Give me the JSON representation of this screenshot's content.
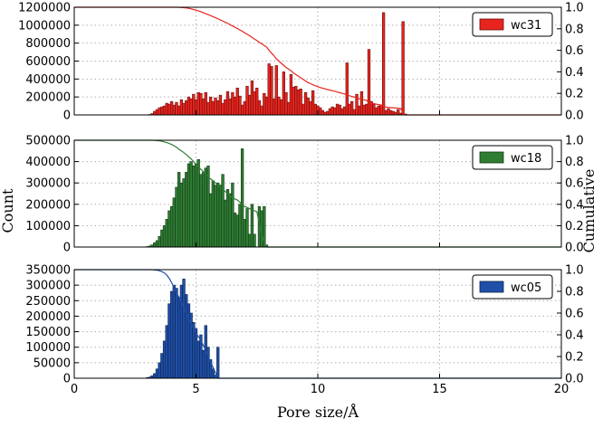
{
  "chart_data": [
    {
      "type": "bar",
      "legend_placement": "top-right",
      "grid": true,
      "x": [
        3.1,
        3.2,
        3.3,
        3.4,
        3.5,
        3.6,
        3.7,
        3.8,
        3.9,
        4.0,
        4.1,
        4.2,
        4.3,
        4.4,
        4.5,
        4.6,
        4.7,
        4.8,
        4.9,
        5.0,
        5.1,
        5.2,
        5.3,
        5.4,
        5.5,
        5.6,
        5.7,
        5.8,
        5.9,
        6.0,
        6.1,
        6.2,
        6.3,
        6.4,
        6.5,
        6.6,
        6.7,
        6.8,
        6.9,
        7.0,
        7.1,
        7.2,
        7.3,
        7.4,
        7.5,
        7.6,
        7.7,
        7.8,
        7.9,
        8.0,
        8.1,
        8.2,
        8.3,
        8.4,
        8.5,
        8.6,
        8.7,
        8.8,
        8.9,
        9.0,
        9.1,
        9.2,
        9.3,
        9.4,
        9.5,
        9.6,
        9.7,
        9.8,
        9.9,
        10.0,
        10.1,
        10.2,
        10.3,
        10.4,
        10.5,
        10.6,
        10.7,
        10.8,
        10.9,
        11.0,
        11.1,
        11.2,
        11.3,
        11.4,
        11.5,
        11.6,
        11.7,
        11.8,
        11.9,
        12.0,
        12.1,
        12.2,
        12.3,
        12.4,
        12.5,
        12.6,
        12.7,
        12.8,
        12.9,
        13.0,
        13.1,
        13.2,
        13.3,
        13.4,
        13.5,
        13.6,
        13.7
      ],
      "series": [
        {
          "name": "wc31",
          "color": "#e8241e",
          "values": [
            5000,
            15000,
            40000,
            60000,
            80000,
            90000,
            100000,
            130000,
            120000,
            150000,
            110000,
            140000,
            100000,
            170000,
            130000,
            160000,
            200000,
            180000,
            230000,
            170000,
            250000,
            240000,
            180000,
            250000,
            140000,
            200000,
            150000,
            190000,
            160000,
            220000,
            130000,
            170000,
            260000,
            180000,
            250000,
            200000,
            300000,
            210000,
            110000,
            150000,
            320000,
            220000,
            380000,
            260000,
            300000,
            160000,
            100000,
            240000,
            200000,
            570000,
            540000,
            180000,
            550000,
            200000,
            170000,
            480000,
            250000,
            140000,
            450000,
            310000,
            320000,
            280000,
            290000,
            120000,
            250000,
            190000,
            150000,
            270000,
            120000,
            100000,
            80000,
            50000,
            30000,
            40000,
            70000,
            90000,
            80000,
            120000,
            110000,
            70000,
            90000,
            580000,
            120000,
            150000,
            60000,
            230000,
            100000,
            260000,
            110000,
            120000,
            730000,
            150000,
            120000,
            80000,
            100000,
            110000,
            1140000,
            50000,
            70000,
            50000,
            40000,
            30000,
            60000,
            20000,
            1040000,
            10000,
            0
          ],
          "cumulative": [
            1.0,
            1.0,
            1.0,
            1.0,
            1.0,
            1.0,
            1.0,
            1.0,
            1.0,
            1.0,
            1.0,
            1.0,
            0.999,
            0.998,
            0.996,
            0.993,
            0.99,
            0.985,
            0.979,
            0.973,
            0.966,
            0.958,
            0.949,
            0.94,
            0.931,
            0.922,
            0.912,
            0.903,
            0.893,
            0.882,
            0.872,
            0.861,
            0.85,
            0.838,
            0.826,
            0.814,
            0.802,
            0.789,
            0.776,
            0.762,
            0.749,
            0.735,
            0.72,
            0.705,
            0.69,
            0.674,
            0.66,
            0.645,
            0.63,
            0.6,
            0.573,
            0.55,
            0.52,
            0.5,
            0.48,
            0.46,
            0.44,
            0.425,
            0.41,
            0.39,
            0.375,
            0.36,
            0.345,
            0.33,
            0.315,
            0.3,
            0.29,
            0.28,
            0.27,
            0.262,
            0.255,
            0.248,
            0.242,
            0.236,
            0.23,
            0.225,
            0.22,
            0.213,
            0.207,
            0.2,
            0.195,
            0.185,
            0.178,
            0.172,
            0.166,
            0.158,
            0.15,
            0.145,
            0.14,
            0.135,
            0.115,
            0.11,
            0.105,
            0.1,
            0.096,
            0.092,
            0.075,
            0.073,
            0.07,
            0.068,
            0.066,
            0.064,
            0.062,
            0.06,
            0.02,
            0.0,
            0.0
          ]
        }
      ],
      "xlim": [
        0,
        20
      ],
      "ylim": [
        0,
        1200000
      ],
      "y2lim": [
        0,
        1.0
      ],
      "y_ticks": [
        "0",
        "200000",
        "400000",
        "600000",
        "800000",
        "1000000",
        "1200000"
      ],
      "y2_ticks": [
        "0.0",
        "0.2",
        "0.4",
        "0.6",
        "0.8",
        "1.0"
      ]
    },
    {
      "type": "bar",
      "legend_placement": "top-right",
      "grid": true,
      "x": [
        3.0,
        3.1,
        3.2,
        3.3,
        3.4,
        3.5,
        3.6,
        3.7,
        3.8,
        3.9,
        4.0,
        4.1,
        4.2,
        4.3,
        4.4,
        4.5,
        4.6,
        4.7,
        4.8,
        4.9,
        5.0,
        5.1,
        5.2,
        5.3,
        5.4,
        5.5,
        5.6,
        5.7,
        5.8,
        5.9,
        6.0,
        6.1,
        6.2,
        6.3,
        6.4,
        6.5,
        6.6,
        6.7,
        6.8,
        6.9,
        7.0,
        7.1,
        7.2,
        7.3,
        7.4,
        7.5,
        7.6,
        7.7,
        7.8,
        7.9
      ],
      "series": [
        {
          "name": "wc18",
          "color": "#2e7d32",
          "values": [
            2000,
            5000,
            10000,
            20000,
            30000,
            50000,
            80000,
            100000,
            130000,
            170000,
            190000,
            230000,
            280000,
            350000,
            300000,
            320000,
            350000,
            390000,
            400000,
            380000,
            390000,
            410000,
            340000,
            350000,
            370000,
            380000,
            250000,
            310000,
            290000,
            300000,
            290000,
            340000,
            220000,
            270000,
            250000,
            300000,
            160000,
            150000,
            200000,
            460000,
            130000,
            180000,
            60000,
            200000,
            60000,
            0,
            190000,
            170000,
            190000,
            10000
          ],
          "cumulative": [
            1.0,
            1.0,
            1.0,
            0.999,
            0.997,
            0.995,
            0.99,
            0.985,
            0.978,
            0.97,
            0.96,
            0.948,
            0.934,
            0.915,
            0.9,
            0.884,
            0.865,
            0.845,
            0.825,
            0.8,
            0.775,
            0.75,
            0.728,
            0.705,
            0.68,
            0.655,
            0.638,
            0.62,
            0.6,
            0.58,
            0.56,
            0.54,
            0.52,
            0.5,
            0.48,
            0.46,
            0.45,
            0.44,
            0.42,
            0.39,
            0.38,
            0.37,
            0.36,
            0.35,
            0.34,
            0.33,
            0.22,
            0.12,
            0.03,
            0.0
          ]
        }
      ],
      "xlim": [
        0,
        20
      ],
      "ylim": [
        0,
        500000
      ],
      "y2lim": [
        0,
        1.0
      ],
      "y_ticks": [
        "0",
        "100000",
        "200000",
        "300000",
        "400000",
        "500000"
      ],
      "y2_ticks": [
        "0.0",
        "0.2",
        "0.4",
        "0.6",
        "0.8",
        "1.0"
      ]
    },
    {
      "type": "bar",
      "legend_placement": "top-right",
      "grid": true,
      "x": [
        3.0,
        3.1,
        3.2,
        3.3,
        3.4,
        3.5,
        3.6,
        3.7,
        3.8,
        3.9,
        4.0,
        4.1,
        4.2,
        4.3,
        4.4,
        4.5,
        4.6,
        4.7,
        4.8,
        4.9,
        5.0,
        5.1,
        5.2,
        5.3,
        5.4,
        5.5,
        5.6,
        5.7,
        5.8,
        5.9
      ],
      "series": [
        {
          "name": "wc05",
          "color": "#1f4fa8",
          "values": [
            2000,
            4000,
            8000,
            15000,
            30000,
            50000,
            80000,
            120000,
            170000,
            240000,
            280000,
            300000,
            290000,
            260000,
            300000,
            320000,
            270000,
            240000,
            210000,
            180000,
            160000,
            120000,
            140000,
            90000,
            170000,
            100000,
            60000,
            30000,
            10000,
            100000
          ],
          "cumulative": [
            1.0,
            1.0,
            0.999,
            0.998,
            0.995,
            0.99,
            0.982,
            0.97,
            0.95,
            0.92,
            0.88,
            0.835,
            0.79,
            0.745,
            0.7,
            0.65,
            0.6,
            0.55,
            0.5,
            0.46,
            0.42,
            0.38,
            0.35,
            0.3,
            0.26,
            0.2,
            0.15,
            0.1,
            0.05,
            0.0
          ]
        }
      ],
      "xlim": [
        0,
        20
      ],
      "ylim": [
        0,
        350000
      ],
      "y2lim": [
        0,
        1.0
      ],
      "y_ticks": [
        "0",
        "50000",
        "100000",
        "150000",
        "200000",
        "250000",
        "300000",
        "350000"
      ],
      "y2_ticks": [
        "0.0",
        "0.2",
        "0.4",
        "0.6",
        "0.8",
        "1.0"
      ]
    }
  ],
  "x_ticks": [
    "0",
    "5",
    "10",
    "15",
    "20"
  ],
  "xlabel": "Pore size/Å",
  "ylabel": "Count",
  "y2label": "Cumulative"
}
